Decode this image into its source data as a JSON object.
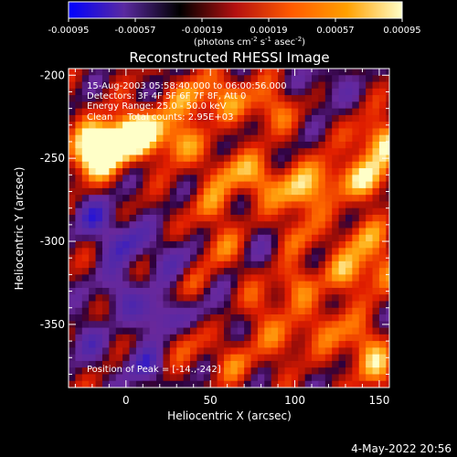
{
  "colorbar": {
    "ticks": [
      "-0.00095",
      "-0.00057",
      "-0.00019",
      "0.00019",
      "0.00057",
      "0.00095"
    ],
    "tick_values": [
      -0.00095,
      -0.00057,
      -0.00019,
      0.00019,
      0.00057,
      0.00095
    ],
    "range": [
      -0.00095,
      0.00095
    ],
    "units_text": "(photons cm",
    "units_exp1": "-2",
    "units_mid1": " s",
    "units_exp2": "-1",
    "units_mid2": " asec",
    "units_exp3": "-2",
    "units_end": ")",
    "colors": [
      "#0000ff",
      "#5a2aa0",
      "#000000",
      "#b41010",
      "#ff5a00",
      "#ffa000",
      "#ffffc8"
    ]
  },
  "chart_data": {
    "type": "heatmap",
    "title": "Reconstructed RHESSI Image",
    "xlabel": "Heliocentric X (arcsec)",
    "ylabel": "Heliocentric Y (arcsec)",
    "xlim": [
      -34,
      156
    ],
    "ylim": [
      -388,
      -196
    ],
    "x_ticks": [
      0,
      50,
      100,
      150
    ],
    "y_ticks": [
      -200,
      -250,
      -300,
      -350
    ],
    "x_tick_labels": [
      "0",
      "50",
      "100",
      "150"
    ],
    "y_tick_labels": [
      "-200",
      "-250",
      "-300",
      "-350"
    ],
    "annotations": [
      "15-Aug-2003 05:58:40.000 to 06:00:56.000",
      "Detectors: 3F 4F 5F 6F 7F 8F, Att 0",
      "Energy Range: 25.0 - 50.0 keV",
      "Clean     Total counts: 2.95E+03",
      "Position of Peak = [-14.,-242]"
    ],
    "peak_position": [
      -14,
      -242
    ],
    "blobs": [
      {
        "x": -14,
        "y": -242,
        "v": 1.0
      },
      {
        "x": 0,
        "y": -238,
        "v": 0.9
      },
      {
        "x": -22,
        "y": -250,
        "v": 0.8
      },
      {
        "x": 12,
        "y": -232,
        "v": 0.7
      },
      {
        "x": 30,
        "y": -240,
        "v": 0.65
      },
      {
        "x": 40,
        "y": -215,
        "v": 0.6
      },
      {
        "x": 60,
        "y": -212,
        "v": 0.5
      },
      {
        "x": 85,
        "y": -220,
        "v": 0.55
      },
      {
        "x": 150,
        "y": -240,
        "v": 0.85
      },
      {
        "x": 145,
        "y": -262,
        "v": 0.7
      },
      {
        "x": 120,
        "y": -262,
        "v": 0.6
      },
      {
        "x": 102,
        "y": -272,
        "v": 0.7
      },
      {
        "x": 80,
        "y": -262,
        "v": 0.55
      },
      {
        "x": 60,
        "y": -258,
        "v": 0.5
      },
      {
        "x": 50,
        "y": -280,
        "v": 0.4
      },
      {
        "x": 100,
        "y": -298,
        "v": 0.5
      },
      {
        "x": 140,
        "y": -298,
        "v": 0.55
      },
      {
        "x": 130,
        "y": -320,
        "v": 0.5
      },
      {
        "x": 150,
        "y": -318,
        "v": 0.5
      },
      {
        "x": 100,
        "y": -325,
        "v": 0.5
      },
      {
        "x": 80,
        "y": -340,
        "v": 0.35
      },
      {
        "x": 120,
        "y": -350,
        "v": 0.45
      },
      {
        "x": 95,
        "y": -360,
        "v": 0.45
      },
      {
        "x": 140,
        "y": -362,
        "v": 0.5
      },
      {
        "x": 150,
        "y": -378,
        "v": 0.5
      },
      {
        "x": 55,
        "y": -305,
        "v": 0.4
      },
      {
        "x": 40,
        "y": -330,
        "v": 0.3
      },
      {
        "x": 65,
        "y": -372,
        "v": 0.4
      },
      {
        "x": 35,
        "y": -360,
        "v": 0.35
      },
      {
        "x": 0,
        "y": -300,
        "v": -0.6
      },
      {
        "x": -20,
        "y": -285,
        "v": -0.5
      },
      {
        "x": 20,
        "y": -345,
        "v": -0.7
      },
      {
        "x": -5,
        "y": -330,
        "v": -0.45
      },
      {
        "x": 30,
        "y": -310,
        "v": -0.4
      },
      {
        "x": -25,
        "y": -360,
        "v": -0.4
      },
      {
        "x": 50,
        "y": -340,
        "v": -0.35
      },
      {
        "x": 90,
        "y": -305,
        "v": -0.3
      },
      {
        "x": 120,
        "y": -205,
        "v": -0.35
      },
      {
        "x": 10,
        "y": -375,
        "v": -0.5
      }
    ]
  },
  "footer": {
    "timestamp": "4-May-2022 20:56"
  }
}
